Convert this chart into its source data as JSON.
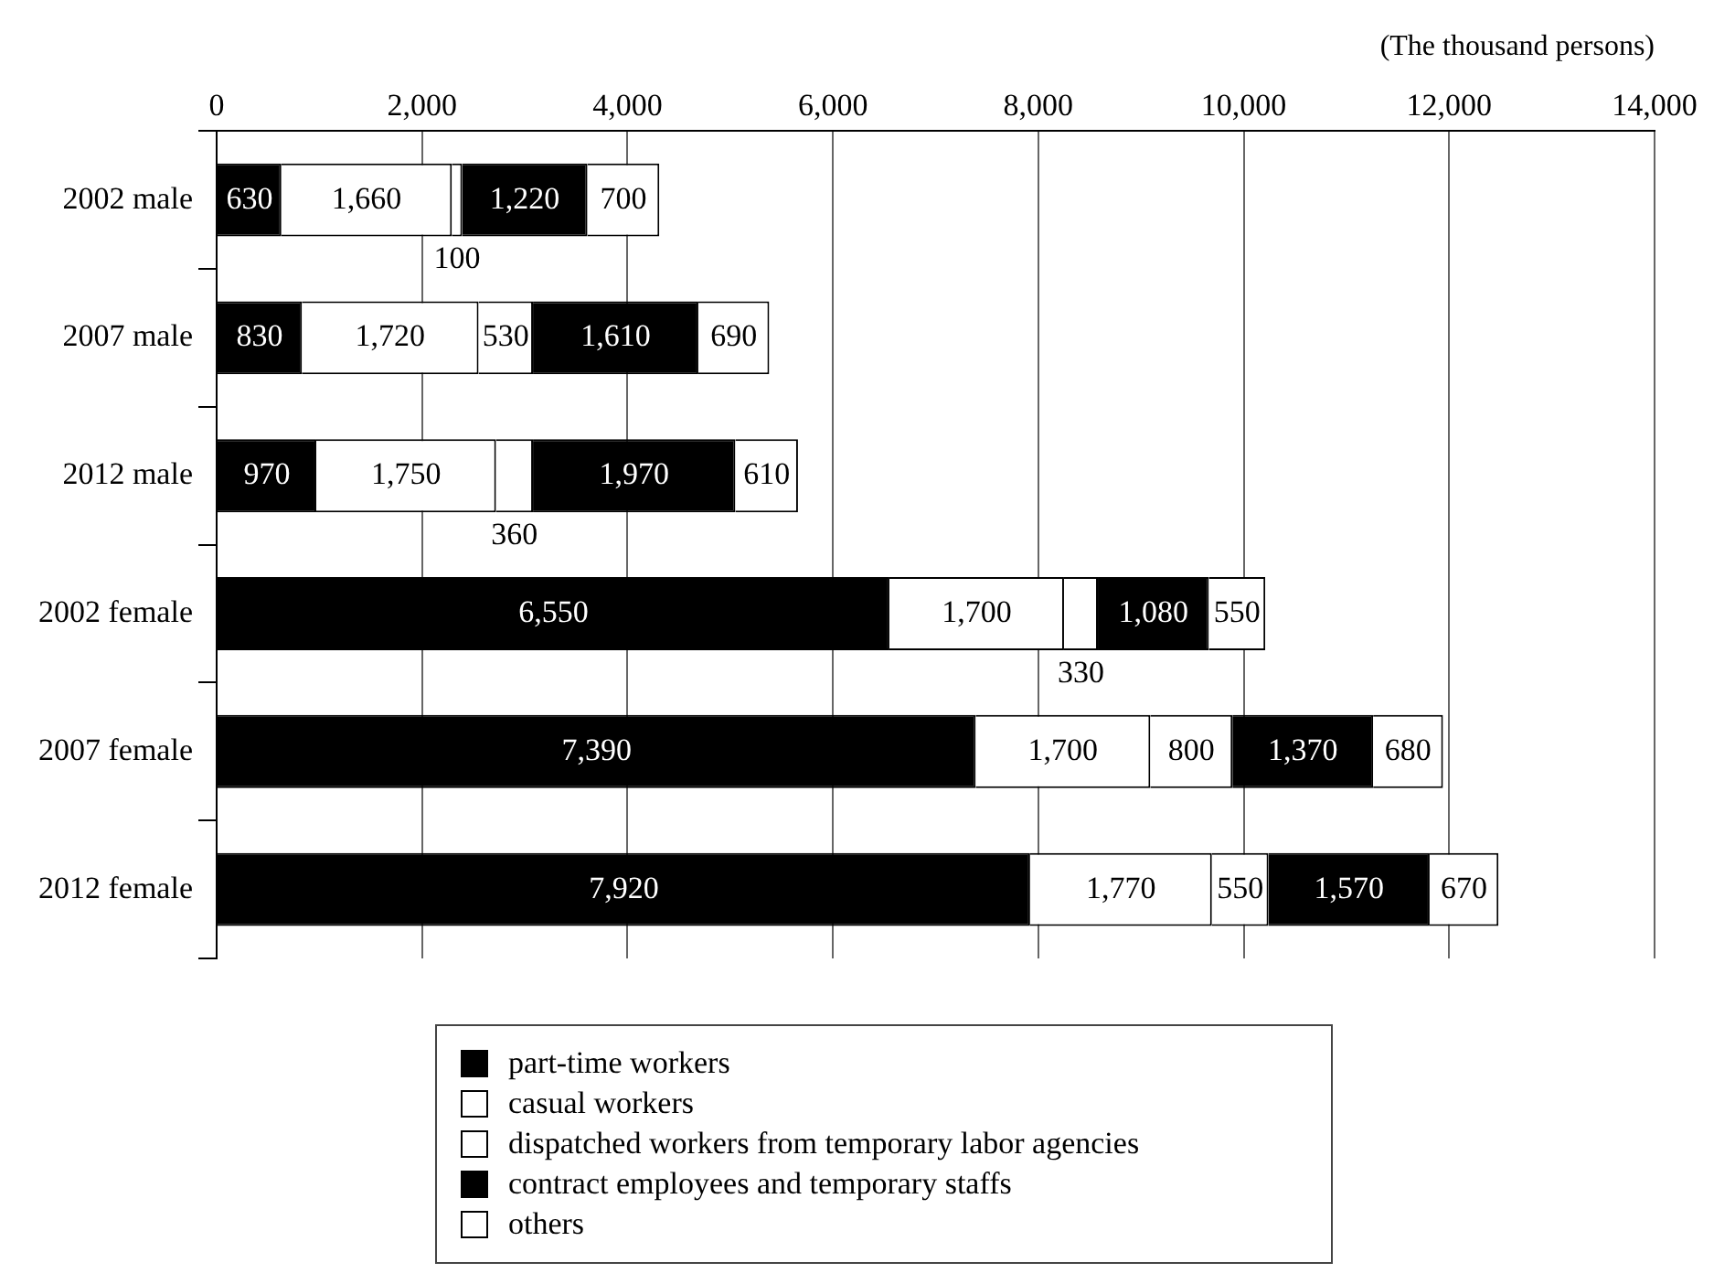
{
  "chart_data": {
    "type": "bar",
    "orientation": "horizontal",
    "stacked": true,
    "xlabel": "(The thousand persons)",
    "categories": [
      "2002 male",
      "2007 male",
      "2012 male",
      "2002 female",
      "2007 female",
      "2012 female"
    ],
    "series": [
      {
        "name": "part-time workers",
        "color": "#000000",
        "values": [
          630,
          830,
          970,
          6550,
          7390,
          7920
        ],
        "value_labels": [
          "630",
          "830",
          "970",
          "6,550",
          "7,390",
          "7,920"
        ]
      },
      {
        "name": "casual workers",
        "color": "#ffffff",
        "values": [
          1660,
          1720,
          1750,
          1700,
          1700,
          1770
        ],
        "value_labels": [
          "1,660",
          "1,720",
          "1,750",
          "1,700",
          "1,700",
          "1,770"
        ]
      },
      {
        "name": "dispatched workers from temporary labor agencies",
        "color": "#ffffff",
        "values": [
          100,
          530,
          360,
          330,
          800,
          550
        ],
        "value_labels": [
          "100",
          "530",
          "360",
          "330",
          "800",
          "550"
        ]
      },
      {
        "name": "contract employees and temporary staffs",
        "color": "#000000",
        "values": [
          1220,
          1610,
          1970,
          1080,
          1370,
          1570
        ],
        "value_labels": [
          "1,220",
          "1,610",
          "1,970",
          "1,080",
          "1,370",
          "1,570"
        ]
      },
      {
        "name": "others",
        "color": "#ffffff",
        "values": [
          700,
          690,
          610,
          550,
          680,
          670
        ],
        "value_labels": [
          "700",
          "690",
          "610",
          "550",
          "680",
          "670"
        ]
      }
    ],
    "xlim": [
      0,
      14000
    ],
    "xticks": [
      0,
      {
        "value": 2000,
        "label": "2,000"
      },
      {
        "value": 4000,
        "label": "4,000"
      },
      {
        "value": 6000,
        "label": "6,000"
      },
      {
        "value": 8000,
        "label": "8,000"
      },
      {
        "value": 10000,
        "label": "10,000"
      },
      {
        "value": 12000,
        "label": "12,000"
      },
      {
        "value": 14000,
        "label": "14,000"
      }
    ],
    "grid": "x",
    "legend": "bottom"
  }
}
